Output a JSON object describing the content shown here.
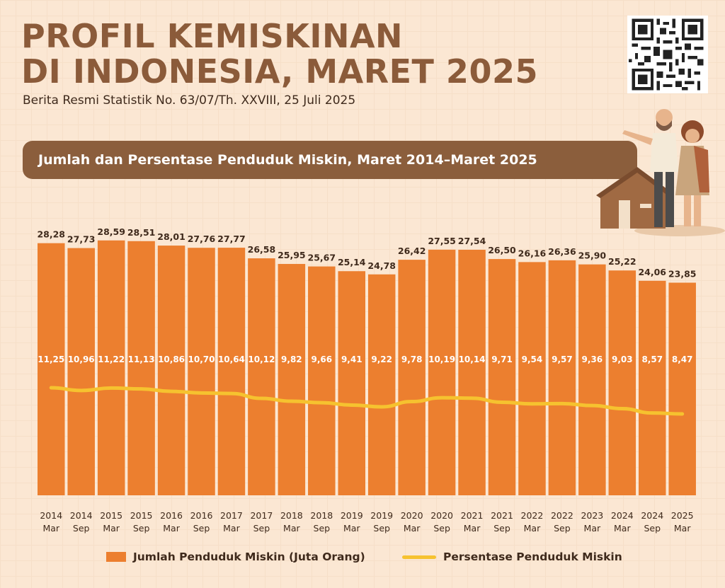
{
  "header": {
    "title_line1": "PROFIL KEMISKINAN",
    "title_line2": "DI INDONESIA, MARET 2025",
    "subtitle": "Berita Resmi Statistik No. 63/07/Th. XXVIII, 25 Juli 2025",
    "section_title": "Jumlah dan Persentase Penduduk Miskin, Maret 2014–Maret 2025"
  },
  "colors": {
    "bar": "#ec7f2f",
    "line": "#f6c22f",
    "title": "#8b5b3a",
    "banner": "#8b5e3c",
    "background": "#fbe7d3"
  },
  "icons": [
    "qr-code-icon",
    "poor-couple-house-illustration"
  ],
  "chart_data": {
    "type": "bar",
    "categories_year": [
      "2014",
      "2014",
      "2015",
      "2015",
      "2016",
      "2016",
      "2017",
      "2017",
      "2018",
      "2018",
      "2019",
      "2019",
      "2020",
      "2020",
      "2021",
      "2021",
      "2022",
      "2022",
      "2023",
      "2024",
      "2024",
      "2025"
    ],
    "categories_month": [
      "Mar",
      "Sep",
      "Mar",
      "Sep",
      "Mar",
      "Sep",
      "Mar",
      "Sep",
      "Mar",
      "Sep",
      "Mar",
      "Sep",
      "Mar",
      "Sep",
      "Mar",
      "Sep",
      "Mar",
      "Sep",
      "Mar",
      "Mar",
      "Sep",
      "Mar"
    ],
    "series": [
      {
        "name": "Jumlah Penduduk Miskin (Juta Orang)",
        "type": "bar",
        "values": [
          28.28,
          27.73,
          28.59,
          28.51,
          28.01,
          27.76,
          27.77,
          26.58,
          25.95,
          25.67,
          25.14,
          24.78,
          26.42,
          27.55,
          27.54,
          26.5,
          26.16,
          26.36,
          25.9,
          25.22,
          24.06,
          23.85
        ],
        "labels": [
          "28,28",
          "27,73",
          "28,59",
          "28,51",
          "28,01",
          "27,76",
          "27,77",
          "26,58",
          "25,95",
          "25,67",
          "25,14",
          "24,78",
          "26,42",
          "27,55",
          "27,54",
          "26,50",
          "26,16",
          "26,36",
          "25,90",
          "25,22",
          "24,06",
          "23,85"
        ]
      },
      {
        "name": "Persentase Penduduk Miskin",
        "type": "line",
        "values": [
          11.25,
          10.96,
          11.22,
          11.13,
          10.86,
          10.7,
          10.64,
          10.12,
          9.82,
          9.66,
          9.41,
          9.22,
          9.78,
          10.19,
          10.14,
          9.71,
          9.54,
          9.57,
          9.36,
          9.03,
          8.57,
          8.47
        ],
        "labels": [
          "11,25",
          "10,96",
          "11,22",
          "11,13",
          "10,86",
          "10,70",
          "10,64",
          "10,12",
          "9,82",
          "9,66",
          "9,41",
          "9,22",
          "9,78",
          "10,19",
          "10,14",
          "9,71",
          "9,54",
          "9,57",
          "9,36",
          "9,03",
          "8,57",
          "8,47"
        ]
      }
    ],
    "legend_position": "bottom",
    "grid": false
  }
}
